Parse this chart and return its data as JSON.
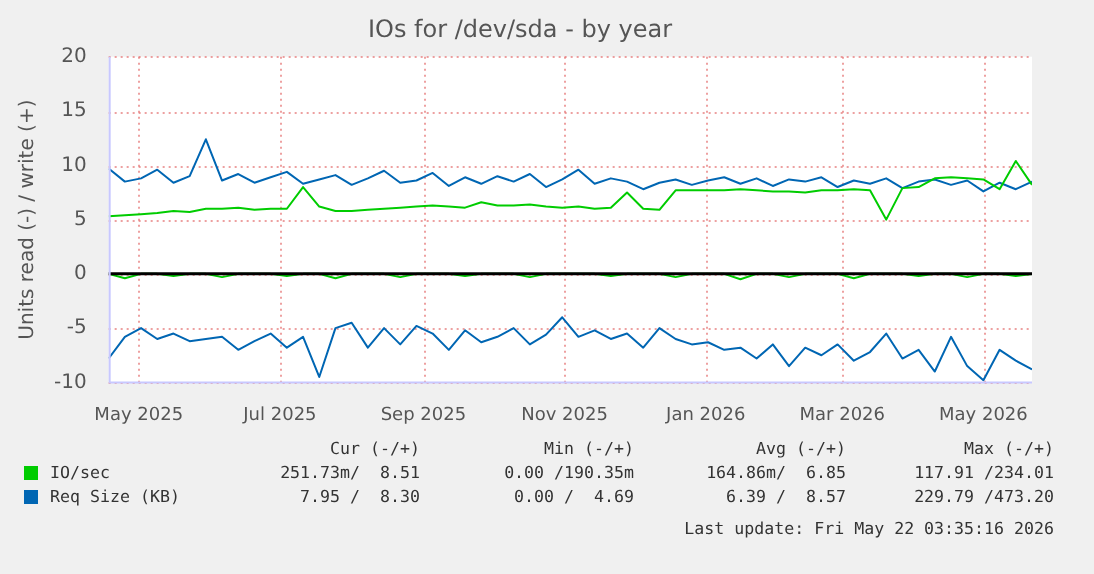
{
  "chart_data": {
    "type": "line",
    "title": "IOs for /dev/sda - by year",
    "ylabel": "Units read (-) / write (+)",
    "x": [
      "2025-04-18",
      "2025-04-25",
      "2025-05-02",
      "2025-05-09",
      "2025-05-16",
      "2025-05-23",
      "2025-05-30",
      "2025-06-06",
      "2025-06-13",
      "2025-06-20",
      "2025-06-27",
      "2025-07-04",
      "2025-07-11",
      "2025-07-18",
      "2025-07-25",
      "2025-08-01",
      "2025-08-08",
      "2025-08-15",
      "2025-08-22",
      "2025-08-29",
      "2025-09-05",
      "2025-09-12",
      "2025-09-19",
      "2025-09-26",
      "2025-10-03",
      "2025-10-10",
      "2025-10-17",
      "2025-10-24",
      "2025-10-31",
      "2025-11-07",
      "2025-11-14",
      "2025-11-21",
      "2025-11-28",
      "2025-12-05",
      "2025-12-12",
      "2025-12-19",
      "2025-12-26",
      "2026-01-02",
      "2026-01-09",
      "2026-01-16",
      "2026-01-23",
      "2026-01-30",
      "2026-02-06",
      "2026-02-13",
      "2026-02-20",
      "2026-02-27",
      "2026-03-06",
      "2026-03-13",
      "2026-03-20",
      "2026-03-27",
      "2026-04-03",
      "2026-04-10",
      "2026-04-17",
      "2026-04-24",
      "2026-05-01",
      "2026-05-08",
      "2026-05-15",
      "2026-05-22"
    ],
    "series": [
      {
        "name": "IO/sec",
        "color": "#00cc00",
        "values": [
          5.3,
          5.4,
          5.5,
          5.6,
          5.8,
          5.7,
          6.0,
          6.0,
          6.1,
          5.9,
          6.0,
          6.0,
          8.0,
          6.2,
          5.8,
          5.8,
          5.9,
          6.0,
          6.1,
          6.2,
          6.3,
          6.2,
          6.1,
          6.6,
          6.3,
          6.3,
          6.4,
          6.2,
          6.1,
          6.2,
          6.0,
          6.1,
          7.5,
          6.0,
          5.9,
          7.7,
          7.7,
          7.7,
          7.7,
          7.8,
          7.7,
          7.6,
          7.6,
          7.5,
          7.7,
          7.7,
          7.8,
          7.7,
          5.0,
          7.9,
          8.0,
          8.8,
          8.9,
          8.8,
          8.7,
          7.8,
          10.4,
          8.2
        ]
      },
      {
        "color": "#00cc00",
        "values": [
          0,
          -0.4,
          0,
          0,
          -0.2,
          0,
          0,
          -0.3,
          0,
          0,
          0,
          -0.2,
          0,
          0,
          -0.4,
          0,
          0,
          0,
          -0.3,
          0,
          0,
          0,
          -0.2,
          0,
          0,
          0,
          -0.3,
          0,
          0,
          0,
          0,
          -0.2,
          0,
          0,
          0,
          -0.3,
          0,
          0,
          0,
          -0.5,
          0,
          0,
          -0.3,
          0,
          0,
          0,
          -0.4,
          0,
          0,
          0,
          -0.2,
          0,
          0,
          -0.3,
          0,
          0,
          -0.2,
          0
        ]
      },
      {
        "name": "Req Size (KB)",
        "color": "#0066b3",
        "values": [
          9.7,
          8.5,
          8.8,
          9.6,
          8.4,
          9.0,
          12.4,
          8.6,
          9.2,
          8.4,
          8.9,
          9.4,
          8.3,
          8.7,
          9.1,
          8.2,
          8.8,
          9.5,
          8.4,
          8.6,
          9.3,
          8.1,
          8.9,
          8.3,
          9.0,
          8.5,
          9.2,
          8.0,
          8.7,
          9.6,
          8.3,
          8.8,
          8.5,
          7.8,
          8.4,
          8.7,
          8.2,
          8.6,
          8.9,
          8.3,
          8.8,
          8.1,
          8.7,
          8.5,
          8.9,
          8.0,
          8.6,
          8.3,
          8.8,
          7.9,
          8.5,
          8.7,
          8.2,
          8.6,
          7.6,
          8.4,
          7.8,
          8.5
        ]
      },
      {
        "color": "#0066b3",
        "values": [
          -7.8,
          -5.8,
          -5.0,
          -6.0,
          -5.5,
          -6.2,
          -6.0,
          -5.8,
          -7.0,
          -6.2,
          -5.5,
          -6.8,
          -5.8,
          -9.5,
          -5.0,
          -4.5,
          -6.8,
          -5.0,
          -6.5,
          -4.8,
          -5.5,
          -7.0,
          -5.2,
          -6.3,
          -5.8,
          -5.0,
          -6.5,
          -5.6,
          -4.0,
          -5.8,
          -5.2,
          -6.0,
          -5.5,
          -6.8,
          -5.0,
          -6.0,
          -6.5,
          -6.3,
          -7.0,
          -6.8,
          -7.8,
          -6.5,
          -8.5,
          -6.8,
          -7.5,
          -6.5,
          -8.0,
          -7.2,
          -5.5,
          -7.8,
          -7.0,
          -9.0,
          -5.8,
          -8.5,
          -9.8,
          -7.0,
          -8.0,
          -8.8
        ]
      }
    ],
    "xlim": [
      "2025-04-18",
      "2026-05-22"
    ],
    "xticks": [
      {
        "value": "2025-05-01",
        "label": "May 2025"
      },
      {
        "value": "2025-07-01",
        "label": "Jul 2025"
      },
      {
        "value": "2025-09-01",
        "label": "Sep 2025"
      },
      {
        "value": "2025-11-01",
        "label": "Nov 2025"
      },
      {
        "value": "2026-01-01",
        "label": "Jan 2026"
      },
      {
        "value": "2026-03-01",
        "label": "Mar 2026"
      },
      {
        "value": "2026-05-01",
        "label": "May 2026"
      }
    ],
    "ylim": [
      -10,
      20
    ],
    "yticks": [
      -10,
      -5,
      0,
      5,
      10,
      15,
      20
    ],
    "ref_lines": [
      {
        "axis": "y",
        "value": 0,
        "color": "#000000"
      }
    ],
    "grid": true,
    "legend": "bottom",
    "marker": "none",
    "line_style": "solid",
    "annotations": [
      "Cur (-/+)",
      "Min (-/+)",
      "Avg (-/+)",
      "Max (-/+)",
      "251.73m/  8.51",
      "0.00 /190.35m",
      "164.86m/  6.85",
      "117.91 /234.01",
      "7.95 /  8.30",
      "0.00 /  4.69",
      "6.39 /  8.57",
      "229.79 /473.20",
      "Last update: Fri May 22 03:35:16 2026"
    ]
  }
}
